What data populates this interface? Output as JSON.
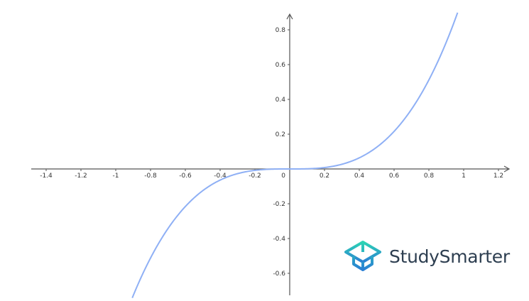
{
  "chart_data": {
    "type": "line",
    "title": "",
    "xlabel": "",
    "ylabel": "",
    "function": "y = x^3",
    "xlim": [
      -1.5,
      1.27
    ],
    "ylim": [
      -0.72,
      0.88
    ],
    "x_ticks": [
      "-1.4",
      "-1.2",
      "-1",
      "-0.8",
      "-0.6",
      "-0.4",
      "-0.2",
      "0.2",
      "0.4",
      "0.6",
      "0.8",
      "1",
      "1.2"
    ],
    "x_tick_values": [
      -1.4,
      -1.2,
      -1,
      -0.8,
      -0.6,
      -0.4,
      -0.2,
      0.2,
      0.4,
      0.6,
      0.8,
      1,
      1.2
    ],
    "y_ticks": [
      "-0.6",
      "-0.4",
      "-0.2",
      "0.2",
      "0.4",
      "0.6",
      "0.8"
    ],
    "y_tick_values": [
      -0.6,
      -0.4,
      -0.2,
      0.2,
      0.4,
      0.6,
      0.8
    ],
    "origin_label": "0",
    "series": [
      {
        "x_range": [
          -0.905,
          0.965
        ],
        "color": "#8fb0f5"
      }
    ],
    "grid": false,
    "axis_color": "#555555"
  },
  "logo": {
    "text": "StudySmarter",
    "colors": [
      "#2dd4b4",
      "#2a7fd4",
      "#2d3e50"
    ]
  }
}
